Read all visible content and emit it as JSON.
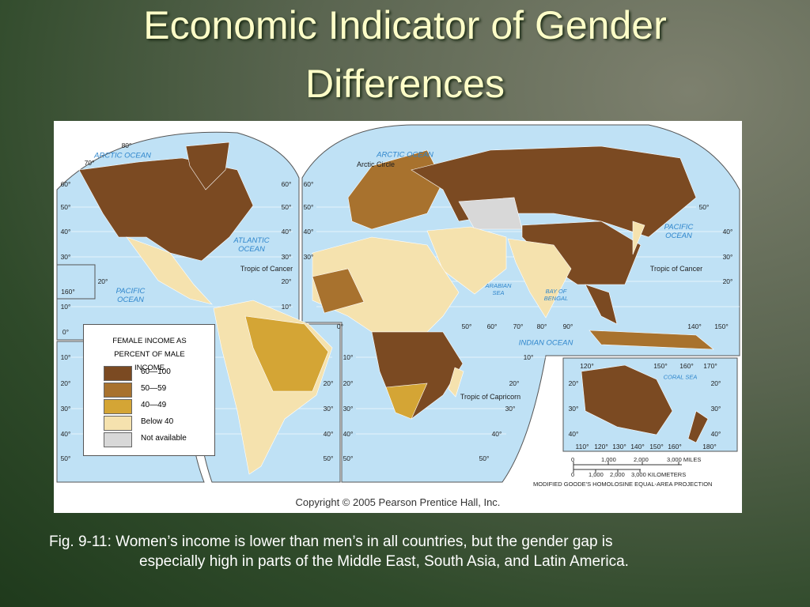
{
  "slide": {
    "title_lines": [
      "Economic Indicator of Gender",
      "Differences"
    ],
    "caption_lines": [
      "Fig. 9-11: Women’s income is lower than men’s in all countries, but the gender gap is",
      "especially high in parts of the Middle East, South Asia, and Latin America."
    ]
  },
  "map": {
    "labels": {
      "arctic_ocean_west": "ARCTIC OCEAN",
      "arctic_ocean_east": "ARCTIC OCEAN",
      "arctic_circle": "Arctic Circle",
      "atlantic_ocean": "ATLANTIC OCEAN",
      "pacific_ocean_west": "PACIFIC OCEAN",
      "pacific_ocean_east": "PACIFIC OCEAN",
      "tropic_of_cancer_west": "Tropic of Cancer",
      "tropic_of_cancer_east": "Tropic of Cancer",
      "arabian_sea": "ARABIAN SEA",
      "bay_of_bengal": "BAY OF BENGAL",
      "indian_ocean": "INDIAN OCEAN",
      "tropic_of_capricorn": "Tropic of Capricorn",
      "coral_sea": "CORAL SEA"
    },
    "graticule_labels": [
      "80°",
      "70°",
      "60°",
      "50°",
      "40°",
      "30°",
      "10°",
      "0°",
      "10°",
      "20°",
      "30°",
      "40°",
      "50°",
      "60°",
      "50°",
      "40°",
      "30°",
      "20°",
      "10°",
      "60°",
      "50°",
      "40°",
      "30°",
      "20°",
      "160°",
      "20°",
      "30°",
      "40°",
      "50°",
      "10°",
      "20°",
      "30°",
      "40°",
      "50°",
      "0°",
      "50°",
      "60°",
      "70°",
      "80°",
      "90°",
      "140°",
      "150°",
      "50°",
      "40°",
      "30°",
      "20°",
      "10°",
      "20°",
      "30°",
      "40°",
      "50°",
      "120°",
      "150°",
      "160°",
      "170°",
      "20°",
      "30°",
      "40°",
      "20°",
      "30°",
      "40°",
      "110°",
      "120°",
      "130°",
      "140°",
      "150°",
      "160°",
      "180°"
    ],
    "legend": {
      "title": "FEMALE INCOME AS PERCENT OF MALE INCOME",
      "items": [
        {
          "label": "60—100",
          "color": "#7b4a22"
        },
        {
          "label": "50—59",
          "color": "#a8722e"
        },
        {
          "label": "40—49",
          "color": "#d4a535"
        },
        {
          "label": "Below 40",
          "color": "#f5e2ae"
        },
        {
          "label": "Not available",
          "color": "#d8d8d8"
        }
      ]
    },
    "scale": {
      "miles": [
        "0",
        "1,000",
        "2,000",
        "3,000 MILES"
      ],
      "kilometers": [
        "0",
        "1,000",
        "2,000",
        "3,000 KILOMETERS"
      ],
      "projection": "MODIFIED GOODE'S HOMOLOSINE EQUAL-AREA PROJECTION"
    },
    "copyright": "Copyright © 2005 Pearson Prentice Hall, Inc."
  }
}
